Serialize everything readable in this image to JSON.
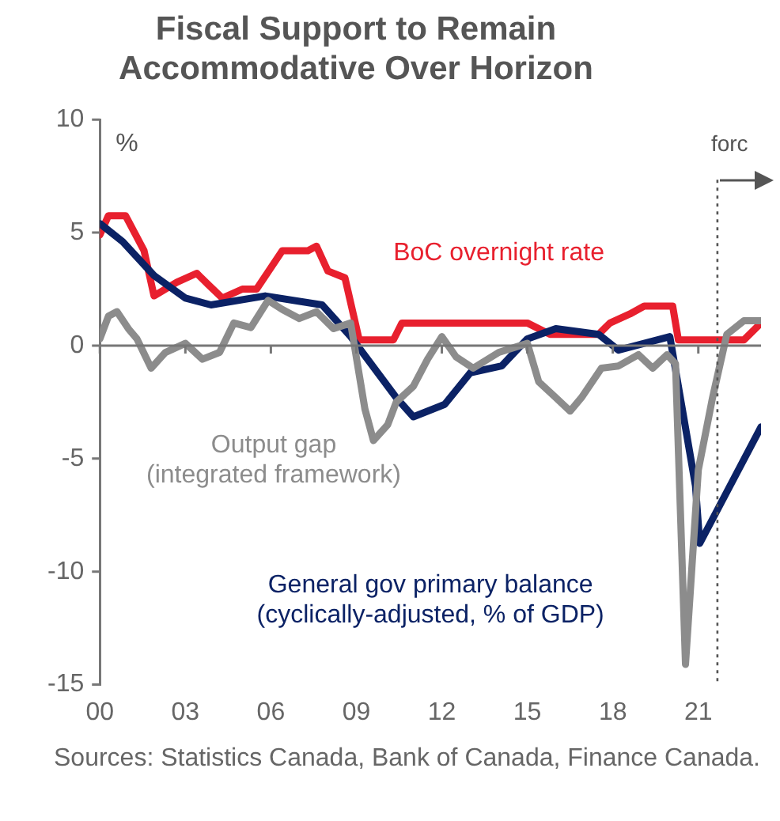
{
  "chart_data": {
    "type": "line",
    "title": "Fiscal Support to Remain Accommodative Over Horizon",
    "ylabel": "%",
    "xlim": [
      2000,
      2023.2
    ],
    "xticks": [
      {
        "value": 2000,
        "label": "00"
      },
      {
        "value": 2003,
        "label": "03"
      },
      {
        "value": 2006,
        "label": "06"
      },
      {
        "value": 2009,
        "label": "09"
      },
      {
        "value": 2012,
        "label": "12"
      },
      {
        "value": 2015,
        "label": "15"
      },
      {
        "value": 2018,
        "label": "18"
      },
      {
        "value": 2021,
        "label": "21"
      }
    ],
    "ylim": [
      -15,
      10
    ],
    "yticks": [
      10,
      5,
      0,
      -5,
      -10,
      -15
    ],
    "grid": false,
    "legend": false,
    "marker": "none",
    "line_style": "solid",
    "ref_lines": [
      {
        "axis": "y",
        "value": 0,
        "line_style": "solid",
        "color": "#777777"
      },
      {
        "axis": "x",
        "value": 2021.67,
        "label": "forc",
        "line_style": "dotted",
        "color": "#555555"
      }
    ],
    "annotations": [
      "Sources: Statistics Canada, Bank of Canada, Finance Canada."
    ],
    "series": [
      {
        "name": "Output gap\n(integrated framework)",
        "color": "#8c8c8c",
        "x": [
          2000,
          2000.3,
          2000.6,
          2001,
          2001.3,
          2001.8,
          2002.3,
          2003,
          2003.6,
          2004.2,
          2004.7,
          2005.3,
          2005.9,
          2006.4,
          2007,
          2007.6,
          2008.2,
          2008.8,
          2009.3,
          2009.6,
          2010.1,
          2010.4,
          2011,
          2011.5,
          2012,
          2012.5,
          2013.1,
          2014,
          2015,
          2015.4,
          2016,
          2016.5,
          2016.9,
          2017.6,
          2018.2,
          2018.9,
          2019.4,
          2019.9,
          2020.2,
          2020.55,
          2021,
          2021.5,
          2022,
          2022.6,
          2023.2
        ],
        "values": [
          0.3,
          1.3,
          1.5,
          0.75,
          0.3,
          -1.0,
          -0.3,
          0.1,
          -0.6,
          -0.3,
          1.0,
          0.8,
          2.0,
          1.6,
          1.2,
          1.5,
          0.75,
          1.0,
          -2.8,
          -4.2,
          -3.5,
          -2.5,
          -1.8,
          -0.6,
          0.4,
          -0.5,
          -1.0,
          -0.3,
          0.1,
          -1.6,
          -2.3,
          -2.9,
          -2.3,
          -1.0,
          -0.9,
          -0.4,
          -1.0,
          -0.4,
          -0.8,
          -14.1,
          -5.5,
          -2.3,
          0.5,
          1.1,
          1.1
        ]
      },
      {
        "name": "General gov primary balance\n(cyclically-adjusted, % of GDP)",
        "color": "#0b2265",
        "x": [
          2000,
          2000.8,
          2001.9,
          2003,
          2003.9,
          2005.8,
          2007.8,
          2008.8,
          2010.4,
          2011,
          2012.1,
          2013,
          2014.1,
          2015,
          2016,
          2017.5,
          2018.2,
          2020,
          2020.9,
          2021.05,
          2023.2
        ],
        "values": [
          5.4,
          4.6,
          3.1,
          2.1,
          1.8,
          2.2,
          1.8,
          0.4,
          -2.3,
          -3.15,
          -2.6,
          -1.2,
          -0.9,
          0.3,
          0.75,
          0.5,
          -0.2,
          0.4,
          -6.2,
          -8.75,
          -3.6
        ]
      },
      {
        "name": "BoC overnight rate",
        "color": "#e8202e",
        "x": [
          2000,
          2000.3,
          2000.9,
          2001.55,
          2001.9,
          2002.7,
          2003.4,
          2003.8,
          2004.3,
          2005,
          2005.5,
          2006.4,
          2007.3,
          2007.6,
          2008,
          2008.6,
          2009.1,
          2010.3,
          2010.6,
          2015,
          2015.8,
          2017.5,
          2017.9,
          2018.6,
          2019.1,
          2020.1,
          2020.3,
          2022.6,
          2023.2
        ],
        "values": [
          4.9,
          5.75,
          5.75,
          4.2,
          2.2,
          2.8,
          3.2,
          2.7,
          2.1,
          2.5,
          2.5,
          4.2,
          4.2,
          4.4,
          3.3,
          3.0,
          0.25,
          0.25,
          1.0,
          1.0,
          0.5,
          0.5,
          1.0,
          1.4,
          1.75,
          1.75,
          0.25,
          0.25,
          1.0
        ]
      }
    ]
  }
}
